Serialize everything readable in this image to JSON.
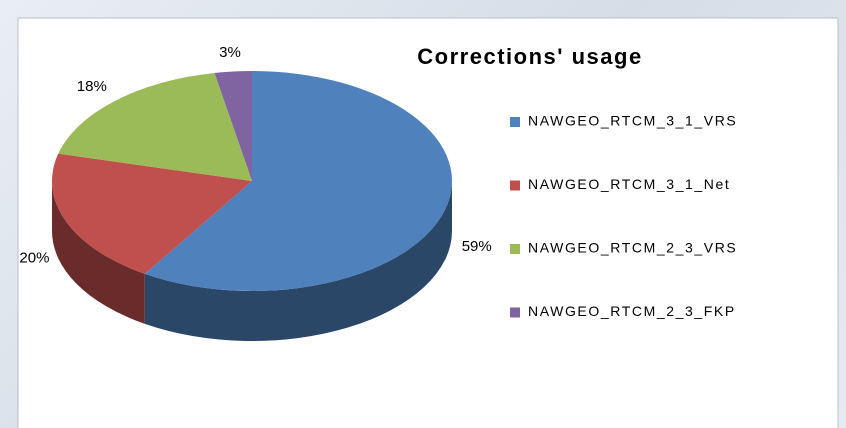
{
  "chart_data": {
    "type": "pie",
    "title": "Corrections' usage",
    "categories": [
      "NAWGEO_RTCM_3_1_VRS",
      "NAWGEO_RTCM_3_1_Net",
      "NAWGEO_RTCM_2_3_VRS",
      "NAWGEO_RTCM_2_3_FKP"
    ],
    "values": [
      59,
      20,
      18,
      3
    ],
    "value_labels": [
      "59%",
      "20%",
      "18%",
      "3%"
    ],
    "colors": [
      "#4f81bd",
      "#c0504d",
      "#9bbb59",
      "#8064a2"
    ]
  }
}
